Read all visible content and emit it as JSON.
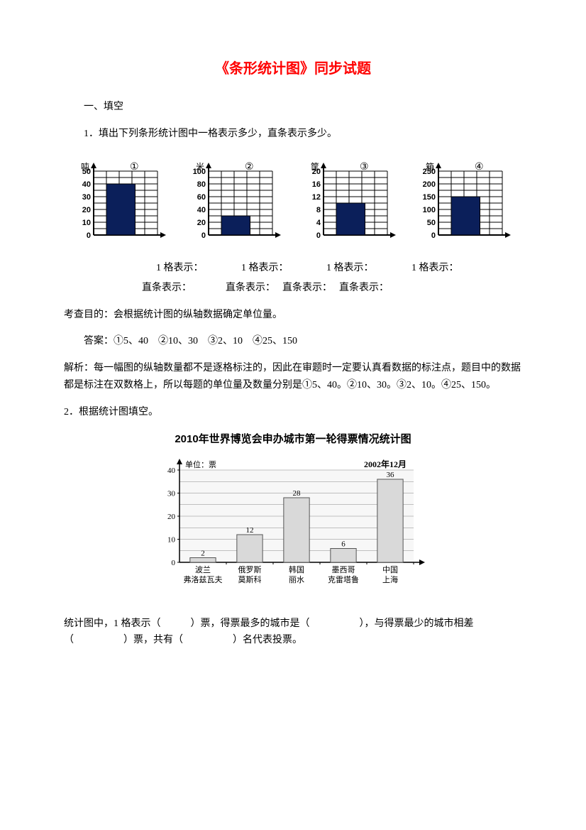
{
  "title": "《条形统计图》同步试题",
  "section1": "一、填空",
  "q1_text": "1．填出下列条形统计图中一格表示多少，直条表示多少。",
  "charts": [
    {
      "circledNum": "①",
      "yUnit": "吨",
      "yMax": 50,
      "yStep": 10,
      "barValue": 40,
      "barColor": "#0b1f5a",
      "gridColor": "#000000",
      "barWidthRatio": 0.45
    },
    {
      "circledNum": "②",
      "yUnit": "米",
      "yMax": 100,
      "yStep": 20,
      "barValue": 30,
      "barColor": "#0b1f5a",
      "gridColor": "#000000",
      "barWidthRatio": 0.45
    },
    {
      "circledNum": "③",
      "yUnit": "筐",
      "yMax": 20,
      "yStep": 4,
      "barValue": 10,
      "barColor": "#0b1f5a",
      "gridColor": "#000000",
      "barWidthRatio": 0.45
    },
    {
      "circledNum": "④",
      "yUnit": "箱",
      "yMax": 250,
      "yStep": 50,
      "barValue": 150,
      "barColor": "#0b1f5a",
      "gridColor": "#000000",
      "barWidthRatio": 0.45
    }
  ],
  "grid_label": "1 格表示：",
  "bar_label": "直条表示：",
  "q1_purpose": "考查目的：会根据统计图的纵轴数据确定单位量。",
  "q1_answer": "答案：①5、40　②10、30　③2、10　④25、150",
  "q1_analysis": "解析：每一幅图的纵轴数量都不是逐格标注的，因此在审题时一定要认真看数据的标注点，题目中的数据都是标注在双数格上，所以每题的单位量及数量分别是①5、40。②10、30。③2、10。④25、150。",
  "q2_text": "2．根据统计图填空。",
  "chart2": {
    "title": "2010年世界博览会申办城市第一轮得票情况统计图",
    "yUnit": "单位：票",
    "date": "2002年12月",
    "yMax": 40,
    "yStep": 10,
    "barColor": "#d9d9d9",
    "gridColor": "#888888",
    "bgColor": "#f7f7f7",
    "categories": [
      {
        "top": "波兰",
        "bottom": "弗洛兹瓦夫",
        "value": 2
      },
      {
        "top": "俄罗斯",
        "bottom": "莫斯科",
        "value": 12
      },
      {
        "top": "韩国",
        "bottom": "丽水",
        "value": 28
      },
      {
        "top": "墨西哥",
        "bottom": "克雷塔鲁",
        "value": 6
      },
      {
        "top": "中国",
        "bottom": "上海",
        "value": 36
      }
    ]
  },
  "q2_fill": "统计图中，1 格表示（　　　）票，得票最多的城市是（　　　　　），与得票最少的城市相差（　　　　　）票，共有（　　　　　）名代表投票。"
}
